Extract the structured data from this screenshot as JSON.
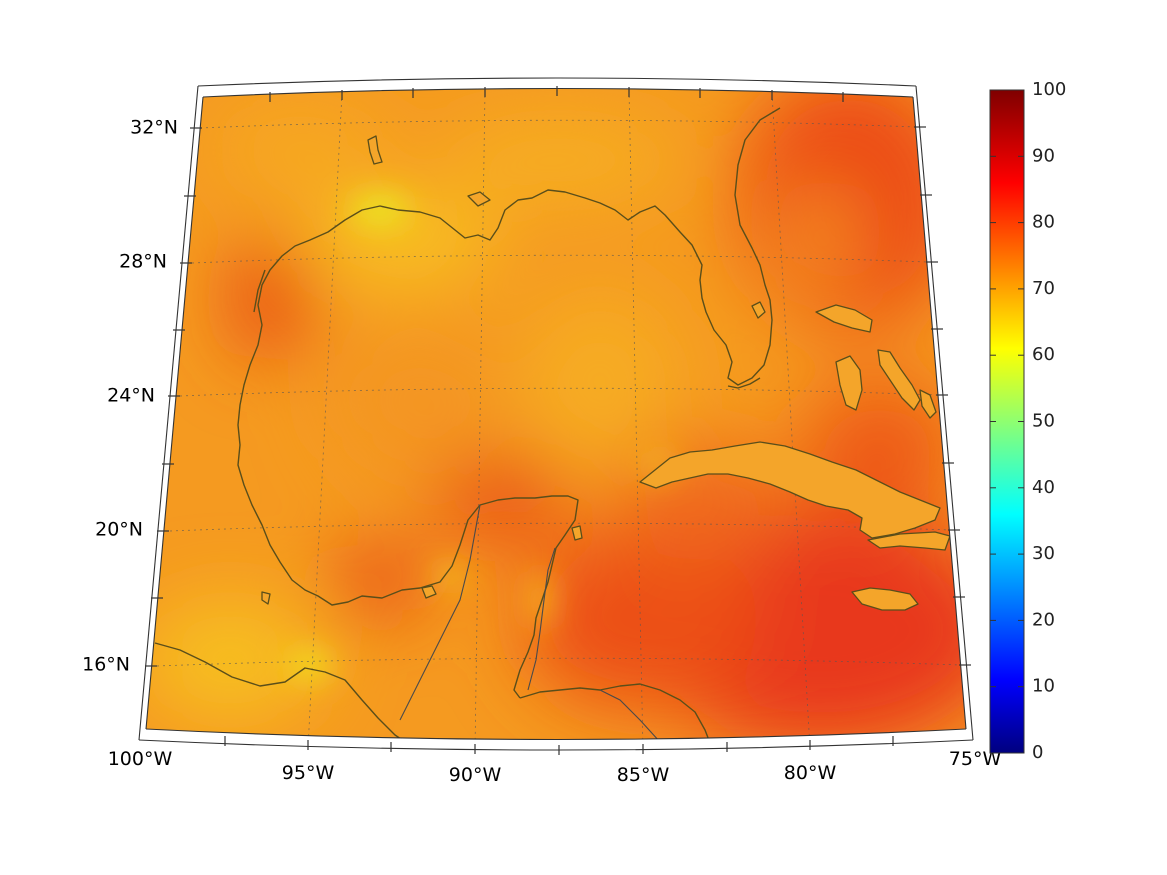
{
  "map": {
    "lat_labels": [
      "32°N",
      "28°N",
      "24°N",
      "20°N",
      "16°N"
    ],
    "lon_labels": [
      "100°W",
      "95°W",
      "90°W",
      "85°W",
      "80°W",
      "75°W"
    ],
    "extent": {
      "lon_min": -100,
      "lon_max": -75,
      "lat_min": 14,
      "lat_max": 33
    }
  },
  "colorbar": {
    "min": 0,
    "max": 100,
    "ticks": [
      "100",
      "90",
      "80",
      "70",
      "60",
      "50",
      "40",
      "30",
      "20",
      "10",
      "0"
    ],
    "colormap": "jet"
  },
  "colors": {
    "coastline": "#5a4e1a",
    "field_dominant": "#f59a20",
    "field_high": "#e83a10",
    "field_low": "#f0e020"
  }
}
